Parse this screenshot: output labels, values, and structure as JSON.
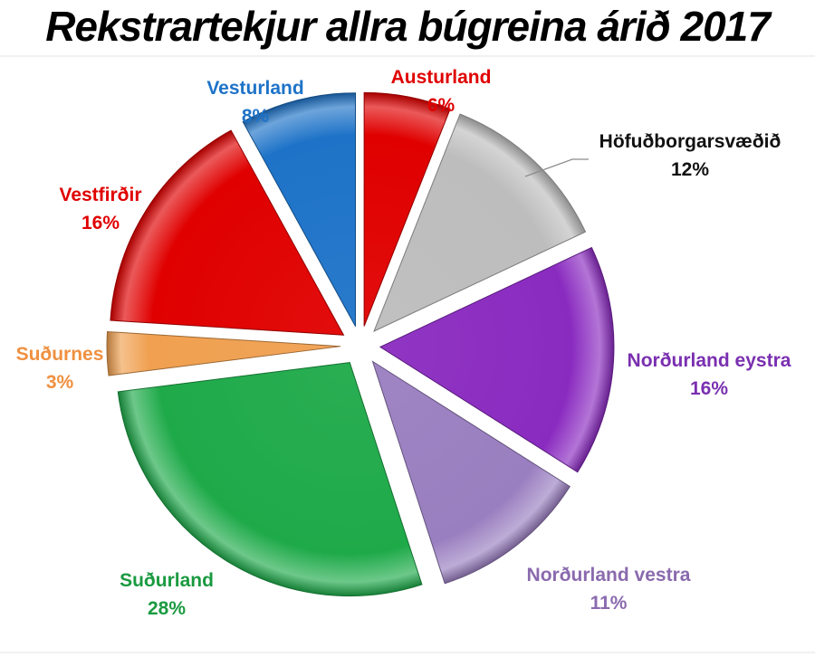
{
  "chart_data": {
    "type": "pie",
    "title": "Rekstrartekjur allra búgreina árið 2017",
    "slices": [
      {
        "name": "Austurland",
        "label": "6%",
        "value": 6,
        "color": "#e00000",
        "label_color": "#e00000"
      },
      {
        "name": "Höfuðborgarsvæðið",
        "label": "12%",
        "value": 12,
        "color": "#bdbdbd",
        "label_color": "#111111"
      },
      {
        "name": "Norðurland eystra",
        "label": "16%",
        "value": 16,
        "color": "#8a2bc0",
        "label_color": "#7a2fb0"
      },
      {
        "name": "Norðurland vestra",
        "label": "11%",
        "value": 11,
        "color": "#9a7fc0",
        "label_color": "#8a6aae"
      },
      {
        "name": "Suðurland",
        "label": "28%",
        "value": 28,
        "color": "#1faa4a",
        "label_color": "#1a9a40"
      },
      {
        "name": "Suðurnes",
        "label": "3%",
        "value": 3,
        "color": "#f0a050",
        "label_color": "#f09040"
      },
      {
        "name": "Vestfirðir",
        "label": "16%",
        "value": 16,
        "color": "#e00000",
        "label_color": "#e00000"
      },
      {
        "name": "Vesturland",
        "label": "8%",
        "value": 8,
        "color": "#1e73c8",
        "label_color": "#1e73c8"
      }
    ]
  }
}
